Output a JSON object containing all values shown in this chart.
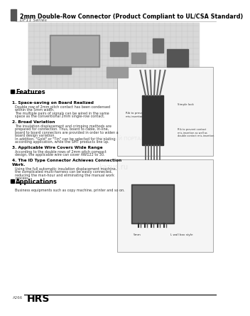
{
  "title": "2mm Double-Row Connector (Product Compliant to UL/CSA Standard)",
  "subtitle": "DF11 Series",
  "features_title": "Features",
  "features": [
    {
      "heading": "1. Space-saving on Board Realized",
      "text": "Double row of 2mm pitch contact has been condensed\nwithin the 5mm width.\nThe multiple pairs of signals can be wired in the same\nspace as the conventional 2mm single-row contact."
    },
    {
      "heading": "2. Broad Variation",
      "text": "The insulation displacement and crimping methods are\nprepared for connection. Thus, board to cable, In-line,\nboard to board connectors are provided in order to widen a\nboard design variation.\nIn addition, \"Gold\" or \"Tin\" can be selected for the plating\naccording application, while the SMT products line up."
    },
    {
      "heading": "3. Applicable Wire Covers Wide Range",
      "text": "According to the double rows of 2mm pitch compact\ndesign, the applicable wire can cover AWG22 to 30."
    },
    {
      "heading": "4. The ID Type Connector Achieves Connection\nWork.",
      "text": "Using the full automatic insulation displacement machine,\nthe complicated multi-harness can be easily connected,\nreducing the man-hour and eliminating the manual work\nprocess."
    }
  ],
  "applications_title": "Applications",
  "applications_text": "Business equipments such as copy machine, printer and so on.",
  "footer_left": "A266",
  "footer_brand": "HRS",
  "header_bar_color": "#555555",
  "bg_color": "#ffffff",
  "text_color": "#000000",
  "accent_color": "#333333",
  "footer_line_color": "#000000"
}
